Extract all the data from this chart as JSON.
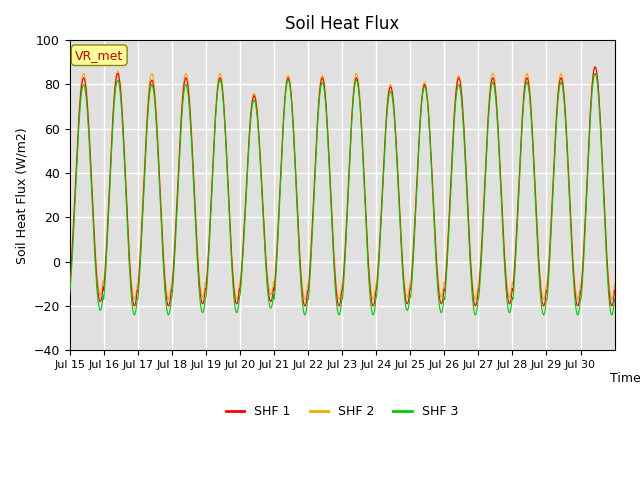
{
  "title": "Soil Heat Flux",
  "xlabel": "Time",
  "ylabel": "Soil Heat Flux (W/m2)",
  "ylim": [
    -40,
    100
  ],
  "yticks": [
    -40,
    -20,
    0,
    20,
    40,
    60,
    80,
    100
  ],
  "xtick_labels": [
    "Jul 15",
    "Jul 16",
    "Jul 17",
    "Jul 18",
    "Jul 19",
    "Jul 20",
    "Jul 21",
    "Jul 22",
    "Jul 23",
    "Jul 24",
    "Jul 25",
    "Jul 26",
    "Jul 27",
    "Jul 28",
    "Jul 29",
    "Jul 30"
  ],
  "colors": {
    "SHF 1": "#ff0000",
    "SHF 2": "#ffa500",
    "SHF 3": "#00cc00"
  },
  "legend_label": "VR_met",
  "legend_label_color": "#cc0000",
  "legend_label_bg": "#ffff99",
  "background_color": "#e0e0e0",
  "grid_color": "#ffffff",
  "n_days": 16,
  "shf1_peaks": [
    83,
    85,
    82,
    83,
    83,
    75,
    83,
    83,
    83,
    79,
    80,
    83,
    83,
    83,
    83,
    88
  ],
  "shf2_peaks": [
    85,
    86,
    85,
    85,
    85,
    76,
    84,
    84,
    85,
    80,
    81,
    84,
    85,
    85,
    85,
    88
  ],
  "shf3_peaks": [
    80,
    82,
    80,
    80,
    82,
    73,
    82,
    81,
    82,
    77,
    79,
    80,
    81,
    81,
    81,
    85
  ],
  "shf1_troughs": [
    -18,
    -20,
    -20,
    -19,
    -19,
    -18,
    -20,
    -20,
    -20,
    -19,
    -19,
    -20,
    -19,
    -20,
    -20,
    -20
  ],
  "shf2_troughs": [
    -15,
    -17,
    -17,
    -16,
    -17,
    -15,
    -17,
    -17,
    -17,
    -16,
    -16,
    -17,
    -16,
    -17,
    -17,
    -17
  ],
  "shf3_troughs": [
    -22,
    -24,
    -24,
    -23,
    -23,
    -21,
    -24,
    -24,
    -24,
    -22,
    -23,
    -24,
    -23,
    -24,
    -24,
    -24
  ]
}
